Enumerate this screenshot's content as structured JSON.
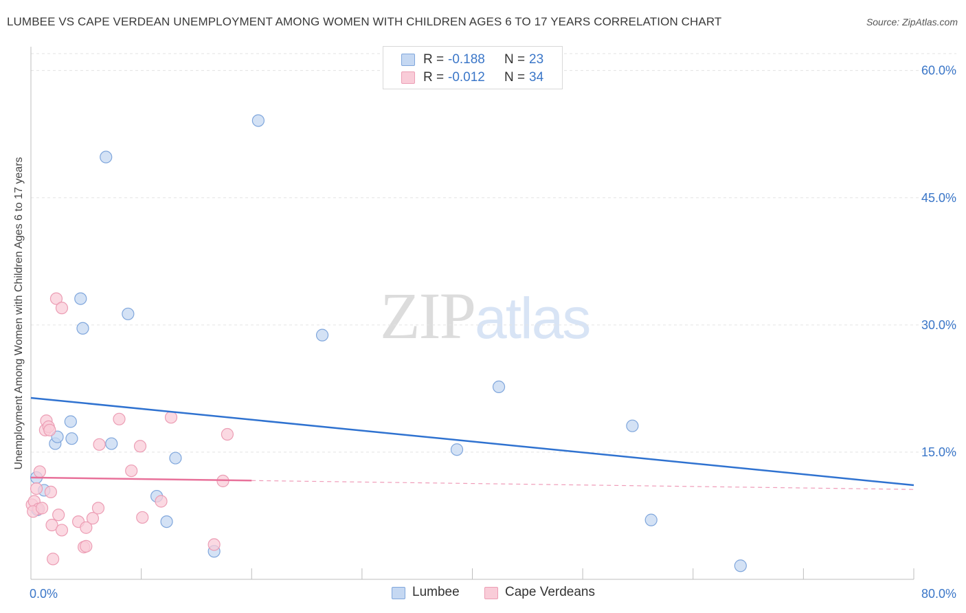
{
  "header": {
    "title": "LUMBEE VS CAPE VERDEAN UNEMPLOYMENT AMONG WOMEN WITH CHILDREN AGES 6 TO 17 YEARS CORRELATION CHART",
    "source": "Source: ZipAtlas.com"
  },
  "legend": {
    "r_label": "R = ",
    "n_label": "N = ",
    "series": [
      {
        "name": "Lumbee",
        "r": "-0.188",
        "n": "23"
      },
      {
        "name": "Cape Verdeans",
        "r": "-0.012",
        "n": "34"
      }
    ]
  },
  "watermark": {
    "zip": "ZIP",
    "atlas": "atlas"
  },
  "colors": {
    "lumbee_fill": "#c5d8f2",
    "lumbee_stroke": "#7fa6dc",
    "lumbee_line": "#2f72d0",
    "cape_fill": "#f9ccd8",
    "cape_stroke": "#ec9db4",
    "cape_line": "#e8719a",
    "tick_label": "#3a76c8",
    "grid": "#e3e3e3"
  },
  "chart_data": {
    "type": "scatter",
    "title": "LUMBEE VS CAPE VERDEAN UNEMPLOYMENT AMONG WOMEN WITH CHILDREN AGES 6 TO 17 YEARS CORRELATION CHART",
    "xlabel": "",
    "ylabel": "Unemployment Among Women with Children Ages 6 to 17 years",
    "xlim": [
      0,
      80
    ],
    "ylim": [
      0,
      62
    ],
    "x_tick_labels": [
      "0.0%",
      "80.0%"
    ],
    "y_ticks": [
      15,
      30,
      45,
      60
    ],
    "y_tick_labels": [
      "15.0%",
      "30.0%",
      "45.0%",
      "60.0%"
    ],
    "grid": true,
    "series": [
      {
        "name": "Lumbee",
        "points": [
          [
            0.5,
            12.0
          ],
          [
            1.2,
            10.5
          ],
          [
            2.2,
            16.0
          ],
          [
            2.4,
            16.8
          ],
          [
            3.6,
            18.6
          ],
          [
            3.7,
            16.6
          ],
          [
            4.5,
            33.1
          ],
          [
            4.7,
            29.6
          ],
          [
            6.8,
            49.8
          ],
          [
            7.3,
            16.0
          ],
          [
            8.8,
            31.3
          ],
          [
            11.4,
            9.8
          ],
          [
            12.3,
            6.8
          ],
          [
            13.1,
            14.3
          ],
          [
            16.6,
            3.3
          ],
          [
            20.6,
            54.1
          ],
          [
            26.4,
            28.8
          ],
          [
            38.6,
            15.3
          ],
          [
            42.4,
            22.7
          ],
          [
            54.5,
            18.1
          ],
          [
            56.2,
            7.0
          ],
          [
            64.3,
            1.6
          ],
          [
            0.6,
            8.2
          ]
        ],
        "trend": {
          "x": [
            0,
            80
          ],
          "y": [
            21.4,
            11.1
          ]
        }
      },
      {
        "name": "Cape Verdeans",
        "points": [
          [
            0.1,
            8.8
          ],
          [
            0.3,
            9.2
          ],
          [
            0.5,
            10.7
          ],
          [
            0.7,
            8.3
          ],
          [
            0.8,
            12.7
          ],
          [
            1.3,
            17.6
          ],
          [
            1.4,
            18.7
          ],
          [
            1.6,
            18.0
          ],
          [
            1.7,
            17.6
          ],
          [
            1.8,
            10.3
          ],
          [
            1.9,
            6.4
          ],
          [
            2.0,
            2.4
          ],
          [
            2.3,
            33.1
          ],
          [
            2.5,
            7.6
          ],
          [
            2.8,
            5.8
          ],
          [
            2.8,
            32.0
          ],
          [
            4.3,
            6.8
          ],
          [
            4.8,
            3.8
          ],
          [
            5.0,
            6.1
          ],
          [
            5.0,
            3.9
          ],
          [
            5.6,
            7.2
          ],
          [
            6.1,
            8.4
          ],
          [
            6.2,
            15.9
          ],
          [
            8.0,
            18.9
          ],
          [
            9.1,
            12.8
          ],
          [
            9.9,
            15.7
          ],
          [
            10.1,
            7.3
          ],
          [
            11.8,
            9.2
          ],
          [
            12.7,
            19.1
          ],
          [
            16.6,
            4.1
          ],
          [
            17.4,
            11.6
          ],
          [
            17.8,
            17.1
          ],
          [
            0.2,
            8.0
          ],
          [
            1.0,
            8.4
          ]
        ],
        "trend": {
          "x": [
            0,
            80
          ],
          "y": [
            12.0,
            10.6
          ],
          "solid_until_x": 20
        }
      }
    ]
  },
  "bottom_legend": [
    {
      "label": "Lumbee"
    },
    {
      "label": "Cape Verdeans"
    }
  ]
}
